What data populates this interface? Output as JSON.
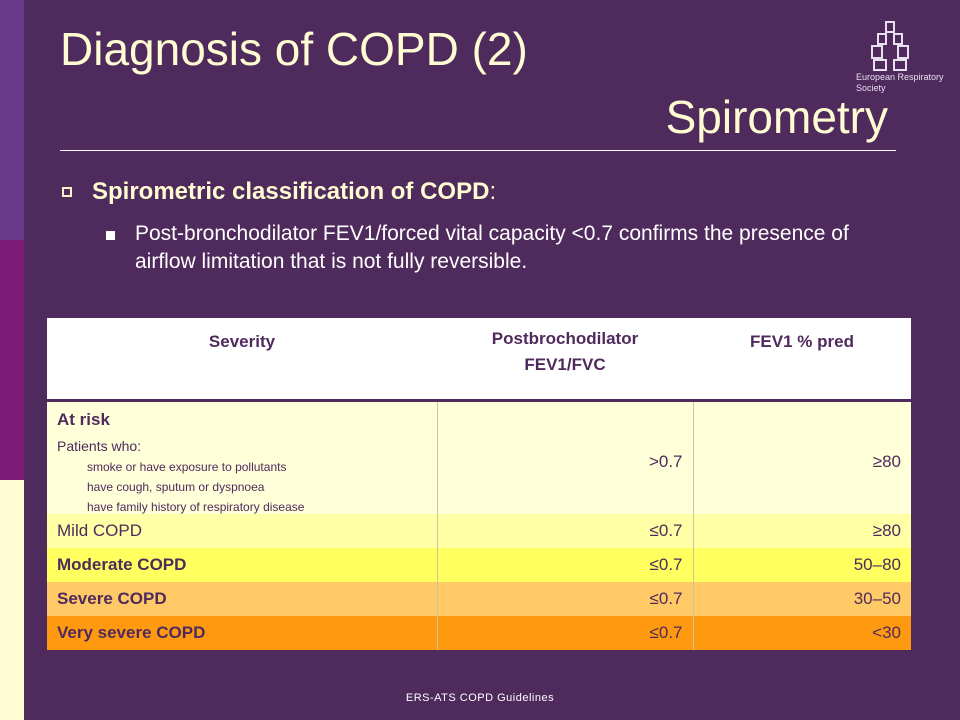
{
  "slide": {
    "title": "Diagnosis of COPD (2)",
    "subtitle": "Spirometry",
    "logo_text": [
      "European Respiratory",
      "Society"
    ],
    "footer": "ERS-ATS COPD Guidelines"
  },
  "bullets": {
    "main": "Spirometric classification of COPD",
    "main_colon": ":",
    "sub": "Post-bronchodilator FEV1/forced vital capacity <0.7 confirms the presence of airflow limitation that is not fully reversible."
  },
  "table": {
    "headers": [
      "Severity",
      "Postbrochodilator FEV1/FVC",
      "FEV1 % pred"
    ],
    "at_risk": {
      "label": "At risk",
      "sub": "Patients who:",
      "items": [
        "smoke or have exposure to pollutants",
        "have cough, sputum or dyspnoea",
        "have family history of respiratory disease"
      ],
      "fev1_fvc": ">0.7",
      "fev1_pred": "≥80"
    },
    "rows": [
      {
        "label": "Mild COPD",
        "fev1_fvc": "≤0.7",
        "fev1_pred": "≥80"
      },
      {
        "label": "Moderate COPD",
        "fev1_fvc": "≤0.7",
        "fev1_pred": "50–80"
      },
      {
        "label": "Severe COPD",
        "fev1_fvc": "≤0.7",
        "fev1_pred": "30–50"
      },
      {
        "label": "Very severe COPD",
        "fev1_fvc": "≤0.7",
        "fev1_pred": "<30"
      }
    ]
  },
  "colors": {
    "background": "#4f2a5c",
    "title_text": "#fffbd2",
    "row_at_risk": "#ffffd9",
    "row_mild": "#ffffa6",
    "row_moderate": "#ffff5f",
    "row_severe": "#ffc966",
    "row_very_severe": "#ff9a10"
  }
}
